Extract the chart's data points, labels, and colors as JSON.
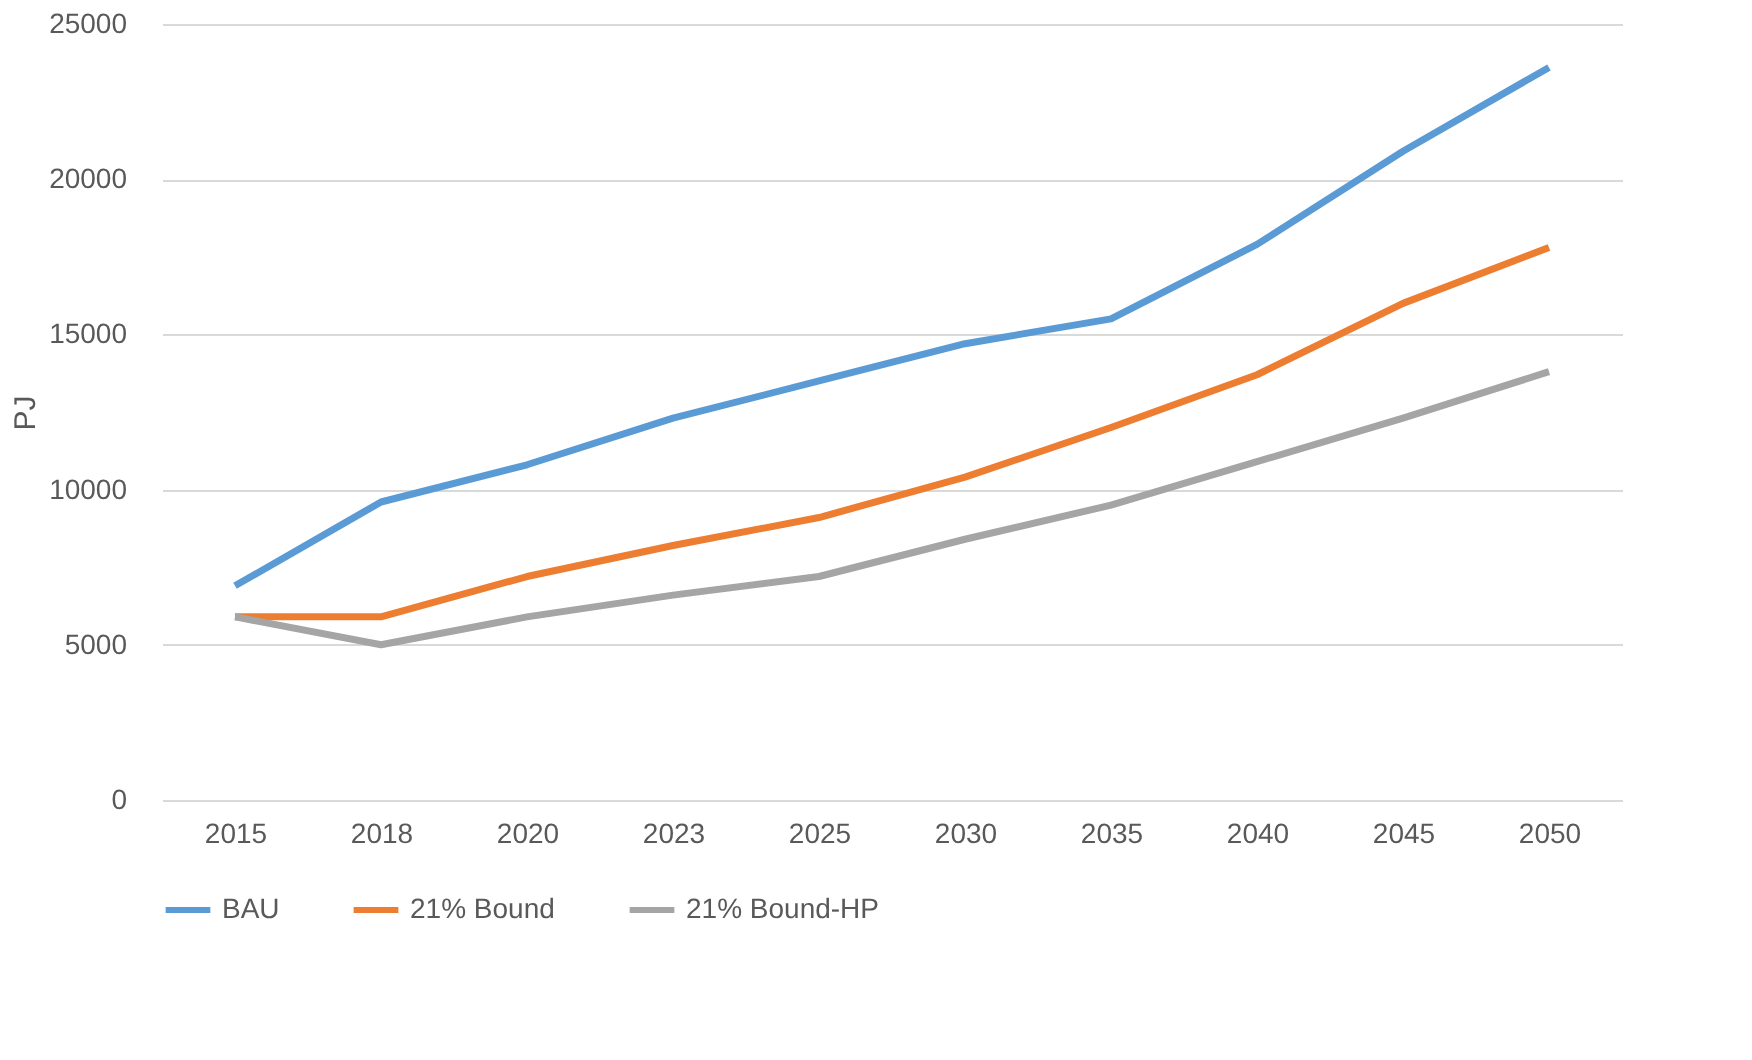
{
  "chart_data": {
    "type": "line",
    "ylabel": "PJ",
    "categories": [
      "2015",
      "2018",
      "2020",
      "2023",
      "2025",
      "2030",
      "2035",
      "2040",
      "2045",
      "2050"
    ],
    "series": [
      {
        "name": "BAU",
        "color": "#5b9bd5",
        "values": [
          6900,
          9600,
          10800,
          12300,
          13500,
          14700,
          15500,
          17900,
          20900,
          23600
        ]
      },
      {
        "name": "21% Bound",
        "color": "#ed7d31",
        "values": [
          5900,
          5900,
          7200,
          8200,
          9100,
          10400,
          12000,
          13700,
          16000,
          17800
        ]
      },
      {
        "name": "21% Bound-HP",
        "color": "#a5a5a5",
        "values": [
          5900,
          5000,
          5900,
          6600,
          7200,
          8400,
          9500,
          10900,
          12300,
          13800
        ]
      }
    ],
    "ylim": [
      0,
      25000
    ],
    "yticks": [
      0,
      5000,
      10000,
      15000,
      20000,
      25000
    ],
    "grid": "y",
    "legend": "bottom",
    "marker": "none",
    "line_style": "solid"
  }
}
